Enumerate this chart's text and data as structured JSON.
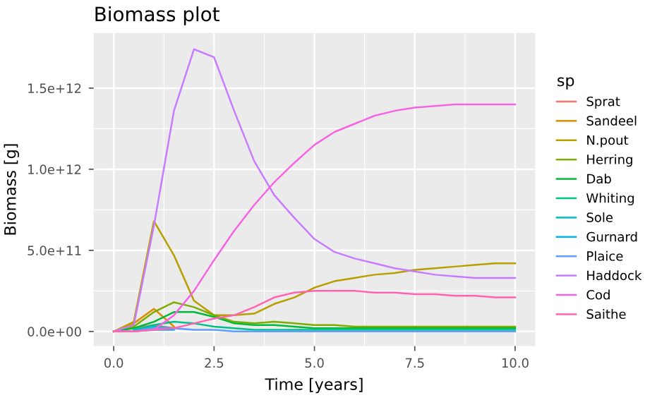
{
  "chart_data": {
    "type": "line",
    "title": "Biomass plot",
    "xlabel": "Time [years]",
    "ylabel": "Biomass [g]",
    "legend_title": "sp",
    "legend": "right",
    "grid": true,
    "x": [
      0,
      0.5,
      1,
      1.5,
      2,
      2.5,
      3,
      3.5,
      4,
      4.5,
      5,
      5.5,
      6,
      6.5,
      7,
      7.5,
      8,
      8.5,
      9,
      9.5,
      10
    ],
    "xlim": [
      -0.5,
      10.5
    ],
    "xticks": [
      {
        "value": 0,
        "label": "0.0"
      },
      {
        "value": 2.5,
        "label": "2.5"
      },
      {
        "value": 5,
        "label": "5.0"
      },
      {
        "value": 7.5,
        "label": "7.5"
      },
      {
        "value": 10,
        "label": "10.0"
      }
    ],
    "ylim": [
      -90000000000.0,
      1840000000000.0
    ],
    "yticks": [
      {
        "value": 0,
        "label": "0.0e+00"
      },
      {
        "value": 500000000000.0,
        "label": "5.0e+11"
      },
      {
        "value": 1000000000000.0,
        "label": "1.0e+12"
      },
      {
        "value": 1500000000000.0,
        "label": "1.5e+12"
      }
    ],
    "series": [
      {
        "name": "Sprat",
        "color": "#F8766D",
        "values": [
          null,
          20000000000.0,
          40000000000.0,
          20000000000.0,
          null,
          null,
          null,
          null,
          null,
          null,
          null,
          null,
          null,
          null,
          null,
          null,
          null,
          null,
          null,
          null,
          null
        ]
      },
      {
        "name": "Sandeel",
        "color": "#DE8C00",
        "values": [
          0,
          50000000000.0,
          140000000000.0,
          30000000000.0,
          null,
          null,
          null,
          null,
          null,
          null,
          null,
          null,
          null,
          null,
          null,
          null,
          null,
          null,
          null,
          null,
          null
        ]
      },
      {
        "name": "N.pout",
        "color": "#B79F00",
        "values": [
          0,
          60000000000.0,
          680000000000.0,
          470000000000.0,
          190000000000.0,
          100000000000.0,
          100000000000.0,
          110000000000.0,
          170000000000.0,
          210000000000.0,
          270000000000.0,
          310000000000.0,
          330000000000.0,
          350000000000.0,
          360000000000.0,
          380000000000.0,
          390000000000.0,
          400000000000.0,
          410000000000.0,
          420000000000.0,
          420000000000.0
        ]
      },
      {
        "name": "Herring",
        "color": "#7CAE00",
        "values": [
          0,
          30000000000.0,
          120000000000.0,
          180000000000.0,
          150000000000.0,
          100000000000.0,
          60000000000.0,
          50000000000.0,
          60000000000.0,
          50000000000.0,
          40000000000.0,
          40000000000.0,
          30000000000.0,
          30000000000.0,
          30000000000.0,
          30000000000.0,
          30000000000.0,
          30000000000.0,
          30000000000.0,
          30000000000.0,
          30000000000.0
        ]
      },
      {
        "name": "Dab",
        "color": "#00BA38",
        "values": [
          0,
          20000000000.0,
          60000000000.0,
          120000000000.0,
          120000000000.0,
          90000000000.0,
          50000000000.0,
          40000000000.0,
          40000000000.0,
          30000000000.0,
          20000000000.0,
          20000000000.0,
          20000000000.0,
          20000000000.0,
          20000000000.0,
          20000000000.0,
          20000000000.0,
          20000000000.0,
          20000000000.0,
          20000000000.0,
          20000000000.0
        ]
      },
      {
        "name": "Whiting",
        "color": "#00C08B",
        "values": [
          null,
          10000000000.0,
          40000000000.0,
          60000000000.0,
          50000000000.0,
          30000000000.0,
          20000000000.0,
          10000000000.0,
          10000000000.0,
          10000000000.0,
          10000000000.0,
          10000000000.0,
          10000000000.0,
          10000000000.0,
          10000000000.0,
          10000000000.0,
          10000000000.0,
          10000000000.0,
          10000000000.0,
          10000000000.0,
          10000000000.0
        ]
      },
      {
        "name": "Sole",
        "color": "#00BFC4",
        "values": [
          null,
          10000000000.0,
          30000000000.0,
          20000000000.0,
          null,
          null,
          null,
          null,
          null,
          null,
          null,
          null,
          null,
          null,
          null,
          null,
          null,
          null,
          null,
          null,
          null
        ]
      },
      {
        "name": "Gurnard",
        "color": "#00B4F0",
        "values": [
          null,
          null,
          10000000000.0,
          10000000000.0,
          null,
          null,
          null,
          null,
          null,
          null,
          null,
          null,
          null,
          null,
          null,
          null,
          null,
          null,
          null,
          null,
          null
        ]
      },
      {
        "name": "Plaice",
        "color": "#619CFF",
        "values": [
          0,
          0,
          20000000000.0,
          20000000000.0,
          10000000000.0,
          10000000000.0,
          0,
          0,
          0,
          0,
          0,
          0,
          0,
          0,
          0,
          0,
          0,
          0,
          0,
          0,
          0
        ]
      },
      {
        "name": "Haddock",
        "color": "#C77CFF",
        "values": [
          0,
          40000000000.0,
          650000000000.0,
          1360000000000.0,
          1740000000000.0,
          1690000000000.0,
          1360000000000.0,
          1050000000000.0,
          840000000000.0,
          700000000000.0,
          570000000000.0,
          490000000000.0,
          450000000000.0,
          420000000000.0,
          390000000000.0,
          370000000000.0,
          350000000000.0,
          340000000000.0,
          330000000000.0,
          330000000000.0,
          330000000000.0
        ]
      },
      {
        "name": "Cod",
        "color": "#F564E3",
        "values": [
          0,
          0,
          10000000000.0,
          100000000000.0,
          250000000000.0,
          440000000000.0,
          620000000000.0,
          780000000000.0,
          920000000000.0,
          1040000000000.0,
          1150000000000.0,
          1230000000000.0,
          1280000000000.0,
          1330000000000.0,
          1360000000000.0,
          1380000000000.0,
          1390000000000.0,
          1400000000000.0,
          1400000000000.0,
          1400000000000.0,
          1400000000000.0
        ]
      },
      {
        "name": "Saithe",
        "color": "#FF64B0",
        "values": [
          0,
          0,
          10000000000.0,
          20000000000.0,
          50000000000.0,
          80000000000.0,
          100000000000.0,
          150000000000.0,
          210000000000.0,
          240000000000.0,
          250000000000.0,
          250000000000.0,
          250000000000.0,
          240000000000.0,
          240000000000.0,
          230000000000.0,
          230000000000.0,
          220000000000.0,
          220000000000.0,
          210000000000.0,
          210000000000.0
        ]
      }
    ]
  }
}
